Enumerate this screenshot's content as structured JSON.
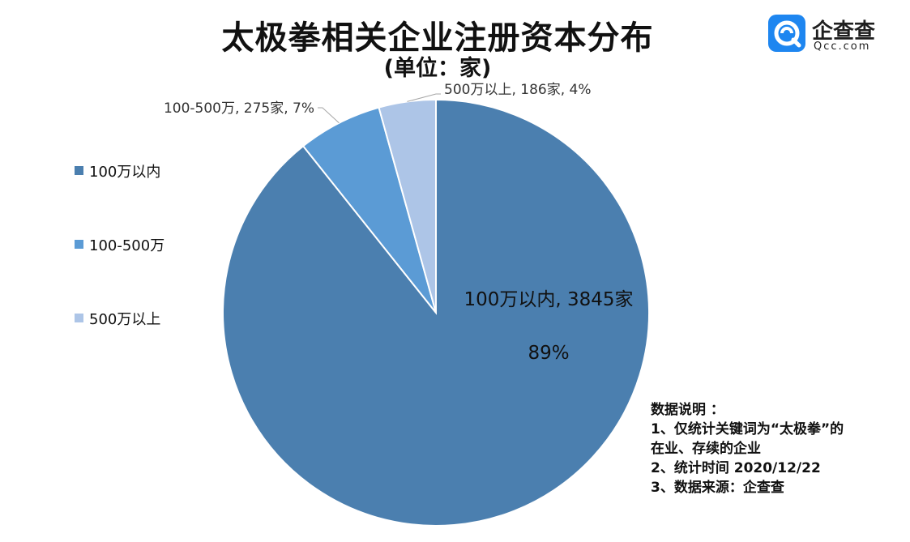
{
  "title": "太极拳相关企业注册资本分布",
  "subtitle": "(单位：家)",
  "logo": {
    "name": "企查查",
    "sub": "Qcc.com"
  },
  "colors": [
    "#4b7faf",
    "#5b9bd5",
    "#adc5e7"
  ],
  "chart_data": {
    "type": "pie",
    "title": "太极拳相关企业注册资本分布",
    "unit": "单位：家",
    "legend_position": "left",
    "slices": [
      {
        "label": "100万以内",
        "value": 3845,
        "percent": "89%",
        "color": "#4b7faf"
      },
      {
        "label": "100-500万",
        "value": 275,
        "percent": "7%",
        "color": "#5b9bd5"
      },
      {
        "label": "500万以上",
        "value": 186,
        "percent": "4%",
        "color": "#adc5e7"
      }
    ],
    "data_labels": [
      {
        "line1": "100万以内, 3845家",
        "line2": "89%"
      },
      {
        "line1": "100-500万, 275家, 7%"
      },
      {
        "line1": "500万以上, 186家, 4%"
      }
    ]
  },
  "notes": {
    "heading": "数据说明 ：",
    "lines": [
      "1、仅统计关键词为“太极拳”的",
      "在业、存续的企业",
      "2、统计时间 2020/12/22",
      "3、数据来源：企查查"
    ]
  }
}
